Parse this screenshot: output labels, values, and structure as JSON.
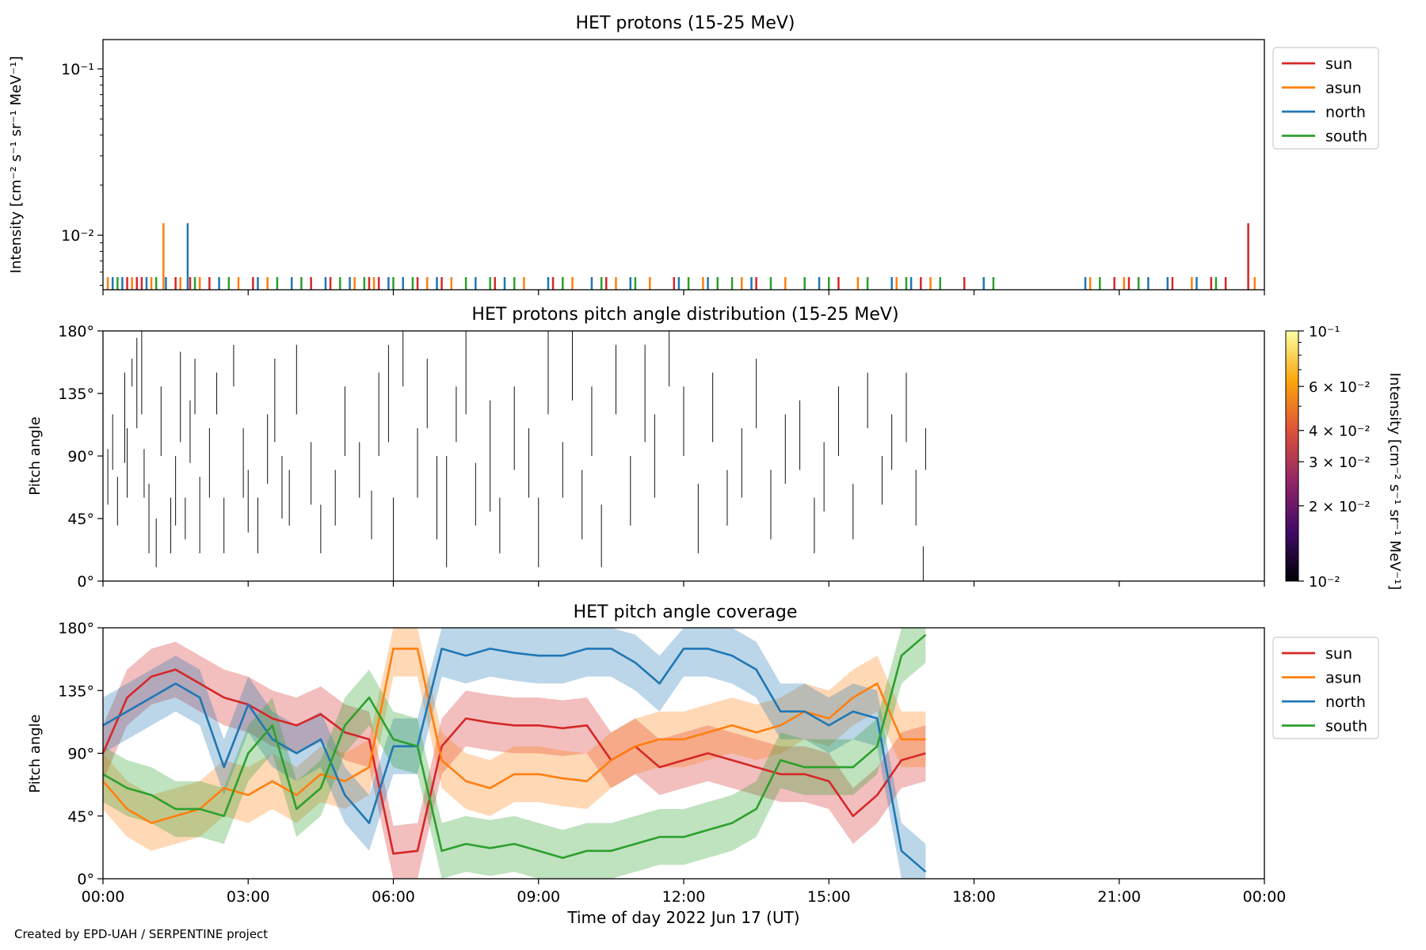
{
  "credit": "Created by EPD-UAH / SERPENTINE project",
  "colors": {
    "sun": "#d62728",
    "asun": "#ff7f0e",
    "north": "#1f77b4",
    "south": "#2ca02c"
  },
  "chart_data": [
    {
      "type": "line",
      "title": "HET protons (15-25 MeV)",
      "ylabel": "Intensity [cm⁻² s⁻¹ sr⁻¹ MeV⁻¹]",
      "yscale": "log",
      "ylim": [
        0.0047,
        0.15
      ],
      "ytick_labels": [
        "10⁻²",
        "10⁻¹"
      ],
      "xlim_hours": [
        0,
        24
      ],
      "legend": {
        "placement": "outside-right",
        "entries": [
          "sun",
          "asun",
          "north",
          "south"
        ]
      },
      "series": [
        {
          "name": "sun",
          "peaks": [
            {
              "x": "23:40",
              "y": 0.0118
            }
          ],
          "baseline_times": [
            0.5,
            0.7,
            0.8,
            1.5,
            1.8,
            2.2,
            3.1,
            4.3,
            4.7,
            5.5,
            5.7,
            6.5,
            7.0,
            8.1,
            9.3,
            10.4,
            11.8,
            13.5,
            15.2,
            16.9,
            17.8,
            20.9,
            21.2,
            22.1,
            22.9,
            23.2
          ]
        },
        {
          "name": "asun",
          "peaks": [
            {
              "x": "01:15",
              "y": 0.0118
            }
          ],
          "baseline_times": [
            0.1,
            0.6,
            1.0,
            1.6,
            2.0,
            2.8,
            3.4,
            5.2,
            5.6,
            6.7,
            7.2,
            8.7,
            9.7,
            10.6,
            11.3,
            12.4,
            13.2,
            14.1,
            15.6,
            16.4,
            17.1,
            20.4,
            21.1,
            22.5,
            23.8
          ]
        },
        {
          "name": "north",
          "peaks": [
            {
              "x": "01:45",
              "y": 0.0118
            }
          ],
          "baseline_times": [
            0.2,
            0.4,
            0.9,
            1.3,
            2.4,
            3.2,
            3.9,
            4.6,
            5.1,
            5.9,
            6.2,
            6.9,
            7.7,
            8.3,
            9.2,
            10.1,
            10.9,
            11.9,
            12.5,
            13.4,
            14.8,
            16.3,
            16.7,
            18.2,
            20.3,
            21.6,
            22.0,
            22.6
          ]
        },
        {
          "name": "south",
          "peaks": [],
          "baseline_times": [
            0.3,
            1.1,
            1.9,
            2.6,
            3.6,
            4.1,
            4.9,
            5.4,
            6.0,
            6.4,
            7.5,
            8.0,
            8.5,
            9.5,
            10.3,
            11.0,
            12.1,
            12.7,
            13.0,
            13.8,
            14.5,
            15.0,
            15.8,
            16.6,
            17.3,
            18.4,
            20.6,
            21.4,
            23.0
          ]
        }
      ]
    },
    {
      "type": "heatmap",
      "title": "HET protons pitch angle distribution (15-25 MeV)",
      "ylabel": "Pitch angle",
      "ylim": [
        0,
        180
      ],
      "ytick_labels": [
        "0°",
        "45°",
        "90°",
        "135°",
        "180°"
      ],
      "colorbar": {
        "label": "Intensity [cm⁻² s⁻¹ sr⁻¹ MeV⁻¹]",
        "scale": "log",
        "range": [
          0.01,
          0.1
        ],
        "tick_labels": [
          "10⁻²",
          "2 × 10⁻²",
          "3 × 10⁻²",
          "4 × 10⁻²",
          "6 × 10⁻²",
          "10⁻¹"
        ]
      },
      "segments_hours": [
        [
          0.0,
          48,
          120
        ],
        [
          0.1,
          55,
          95
        ],
        [
          0.2,
          80,
          120
        ],
        [
          0.3,
          40,
          75
        ],
        [
          0.45,
          85,
          150
        ],
        [
          0.5,
          60,
          110
        ],
        [
          0.6,
          140,
          160
        ],
        [
          0.7,
          110,
          175
        ],
        [
          0.8,
          120,
          180
        ],
        [
          0.85,
          60,
          95
        ],
        [
          0.95,
          20,
          70
        ],
        [
          1.1,
          10,
          45
        ],
        [
          1.2,
          90,
          140
        ],
        [
          1.4,
          20,
          60
        ],
        [
          1.5,
          40,
          90
        ],
        [
          1.6,
          100,
          165
        ],
        [
          1.7,
          30,
          60
        ],
        [
          1.8,
          85,
          130
        ],
        [
          1.9,
          120,
          160
        ],
        [
          2.0,
          20,
          75
        ],
        [
          2.2,
          60,
          110
        ],
        [
          2.35,
          120,
          150
        ],
        [
          2.5,
          20,
          60
        ],
        [
          2.7,
          140,
          170
        ],
        [
          2.9,
          60,
          110
        ],
        [
          3.0,
          35,
          80
        ],
        [
          3.2,
          20,
          60
        ],
        [
          3.4,
          70,
          120
        ],
        [
          3.55,
          100,
          160
        ],
        [
          3.7,
          45,
          90
        ],
        [
          3.85,
          40,
          80
        ],
        [
          4.0,
          120,
          170
        ],
        [
          4.3,
          55,
          100
        ],
        [
          4.5,
          20,
          55
        ],
        [
          4.8,
          40,
          80
        ],
        [
          5.0,
          90,
          140
        ],
        [
          5.3,
          60,
          100
        ],
        [
          5.55,
          30,
          65
        ],
        [
          5.7,
          90,
          150
        ],
        [
          5.9,
          100,
          170
        ],
        [
          6.0,
          0,
          60
        ],
        [
          6.2,
          140,
          180
        ],
        [
          6.5,
          60,
          110
        ],
        [
          6.7,
          110,
          160
        ],
        [
          6.9,
          30,
          90
        ],
        [
          7.1,
          10,
          90
        ],
        [
          7.3,
          100,
          140
        ],
        [
          7.5,
          120,
          180
        ],
        [
          7.7,
          40,
          85
        ],
        [
          8.0,
          50,
          130
        ],
        [
          8.2,
          20,
          60
        ],
        [
          8.5,
          80,
          140
        ],
        [
          8.8,
          60,
          110
        ],
        [
          9.0,
          10,
          60
        ],
        [
          9.2,
          120,
          180
        ],
        [
          9.5,
          60,
          100
        ],
        [
          9.7,
          130,
          180
        ],
        [
          9.9,
          30,
          80
        ],
        [
          10.1,
          90,
          140
        ],
        [
          10.3,
          10,
          55
        ],
        [
          10.6,
          120,
          170
        ],
        [
          10.9,
          40,
          90
        ],
        [
          11.2,
          100,
          170
        ],
        [
          11.4,
          60,
          120
        ],
        [
          11.7,
          140,
          180
        ],
        [
          12.0,
          90,
          140
        ],
        [
          12.3,
          20,
          70
        ],
        [
          12.6,
          100,
          150
        ],
        [
          12.9,
          40,
          80
        ],
        [
          13.2,
          60,
          110
        ],
        [
          13.5,
          110,
          160
        ],
        [
          13.8,
          30,
          80
        ],
        [
          14.1,
          70,
          120
        ],
        [
          14.4,
          80,
          130
        ],
        [
          14.7,
          20,
          60
        ],
        [
          14.9,
          50,
          100
        ],
        [
          15.2,
          90,
          140
        ],
        [
          15.5,
          30,
          70
        ],
        [
          15.8,
          110,
          150
        ],
        [
          16.1,
          55,
          90
        ],
        [
          16.3,
          80,
          120
        ],
        [
          16.6,
          100,
          150
        ],
        [
          16.8,
          40,
          80
        ],
        [
          16.95,
          0,
          25
        ],
        [
          17.0,
          80,
          110
        ]
      ]
    },
    {
      "type": "line",
      "title": "HET pitch angle coverage",
      "xlabel": "Time of day 2022 Jun 17 (UT)",
      "ylabel": "Pitch angle",
      "ylim": [
        0,
        180
      ],
      "ytick_labels": [
        "0°",
        "45°",
        "90°",
        "135°",
        "180°"
      ],
      "xtick_labels": [
        "00:00",
        "03:00",
        "06:00",
        "09:00",
        "12:00",
        "15:00",
        "18:00",
        "21:00",
        "00:00"
      ],
      "legend": {
        "placement": "outside-right",
        "entries": [
          "sun",
          "asun",
          "north",
          "south"
        ]
      },
      "series": [
        {
          "name": "sun",
          "x": [
            0,
            0.5,
            1,
            1.5,
            2,
            2.5,
            3,
            3.5,
            4,
            4.5,
            5,
            5.5,
            6,
            6.5,
            7,
            7.5,
            8,
            8.5,
            9,
            9.5,
            10,
            10.5,
            11,
            11.5,
            12,
            12.5,
            13,
            13.5,
            14,
            14.5,
            15,
            15.5,
            16,
            16.5,
            17
          ],
          "values": [
            90,
            130,
            145,
            150,
            140,
            130,
            125,
            115,
            110,
            118,
            105,
            100,
            18,
            20,
            95,
            115,
            112,
            110,
            110,
            108,
            110,
            85,
            95,
            80,
            85,
            90,
            85,
            80,
            75,
            75,
            70,
            45,
            60,
            85,
            90
          ],
          "band": 20
        },
        {
          "name": "asun",
          "x": [
            0,
            0.5,
            1,
            1.5,
            2,
            2.5,
            3,
            3.5,
            4,
            4.5,
            5,
            5.5,
            6,
            6.5,
            7,
            7.5,
            8,
            8.5,
            9,
            9.5,
            10,
            10.5,
            11,
            11.5,
            12,
            12.5,
            13,
            13.5,
            14,
            14.5,
            15,
            15.5,
            16,
            16.5,
            17
          ],
          "values": [
            70,
            50,
            40,
            45,
            50,
            65,
            60,
            70,
            60,
            75,
            70,
            80,
            165,
            165,
            85,
            70,
            65,
            75,
            75,
            72,
            70,
            85,
            95,
            100,
            100,
            105,
            110,
            105,
            110,
            120,
            115,
            130,
            140,
            100,
            100
          ],
          "band": 20
        },
        {
          "name": "north",
          "x": [
            0,
            0.5,
            1,
            1.5,
            2,
            2.5,
            3,
            3.5,
            4,
            4.5,
            5,
            5.5,
            6,
            6.5,
            7,
            7.5,
            8,
            8.5,
            9,
            9.5,
            10,
            10.5,
            11,
            11.5,
            12,
            12.5,
            13,
            13.5,
            14,
            14.5,
            15,
            15.5,
            16,
            16.5,
            17
          ],
          "values": [
            110,
            120,
            130,
            140,
            130,
            80,
            125,
            100,
            90,
            100,
            60,
            40,
            95,
            95,
            165,
            160,
            165,
            162,
            160,
            160,
            165,
            165,
            155,
            140,
            165,
            165,
            160,
            150,
            120,
            120,
            110,
            120,
            115,
            20,
            5
          ],
          "band": 20
        },
        {
          "name": "south",
          "x": [
            0,
            0.5,
            1,
            1.5,
            2,
            2.5,
            3,
            3.5,
            4,
            4.5,
            5,
            5.5,
            6,
            6.5,
            7,
            7.5,
            8,
            8.5,
            9,
            9.5,
            10,
            10.5,
            11,
            11.5,
            12,
            12.5,
            13,
            13.5,
            14,
            14.5,
            15,
            15.5,
            16,
            16.5,
            17
          ],
          "values": [
            75,
            65,
            60,
            50,
            50,
            45,
            90,
            110,
            50,
            65,
            110,
            130,
            100,
            95,
            20,
            25,
            22,
            25,
            20,
            15,
            20,
            20,
            25,
            30,
            30,
            35,
            40,
            50,
            85,
            80,
            80,
            80,
            95,
            160,
            175
          ],
          "band": 20
        }
      ]
    }
  ]
}
